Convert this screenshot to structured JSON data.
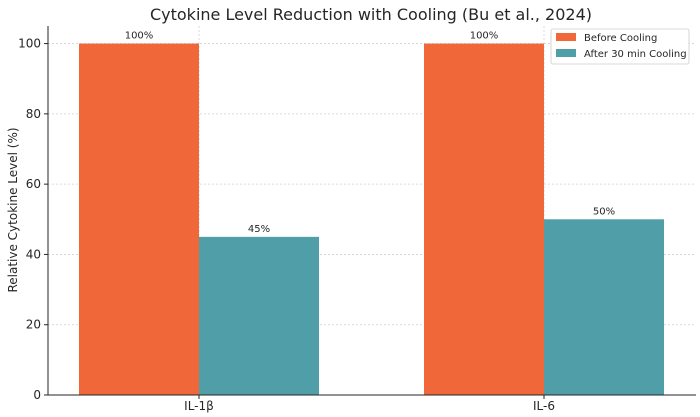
{
  "chart_data": {
    "type": "bar",
    "title": "Cytokine Level Reduction with Cooling (Bu et al., 2024)",
    "xlabel": "",
    "ylabel": "Relative Cytokine Level (%)",
    "categories": [
      "IL-1β",
      "IL-6"
    ],
    "series": [
      {
        "name": "Before Cooling",
        "values": [
          100,
          100
        ],
        "labels": [
          "100%",
          "100%"
        ],
        "color": "#F0673A"
      },
      {
        "name": "After 30 min Cooling",
        "values": [
          45,
          50
        ],
        "labels": [
          "45%",
          "50%"
        ],
        "color": "#4F9EA8"
      }
    ],
    "ylim": [
      0,
      105
    ],
    "yticks": [
      "0",
      "20",
      "40",
      "60",
      "80",
      "100"
    ],
    "grid": true,
    "legend_position": "top-right"
  }
}
